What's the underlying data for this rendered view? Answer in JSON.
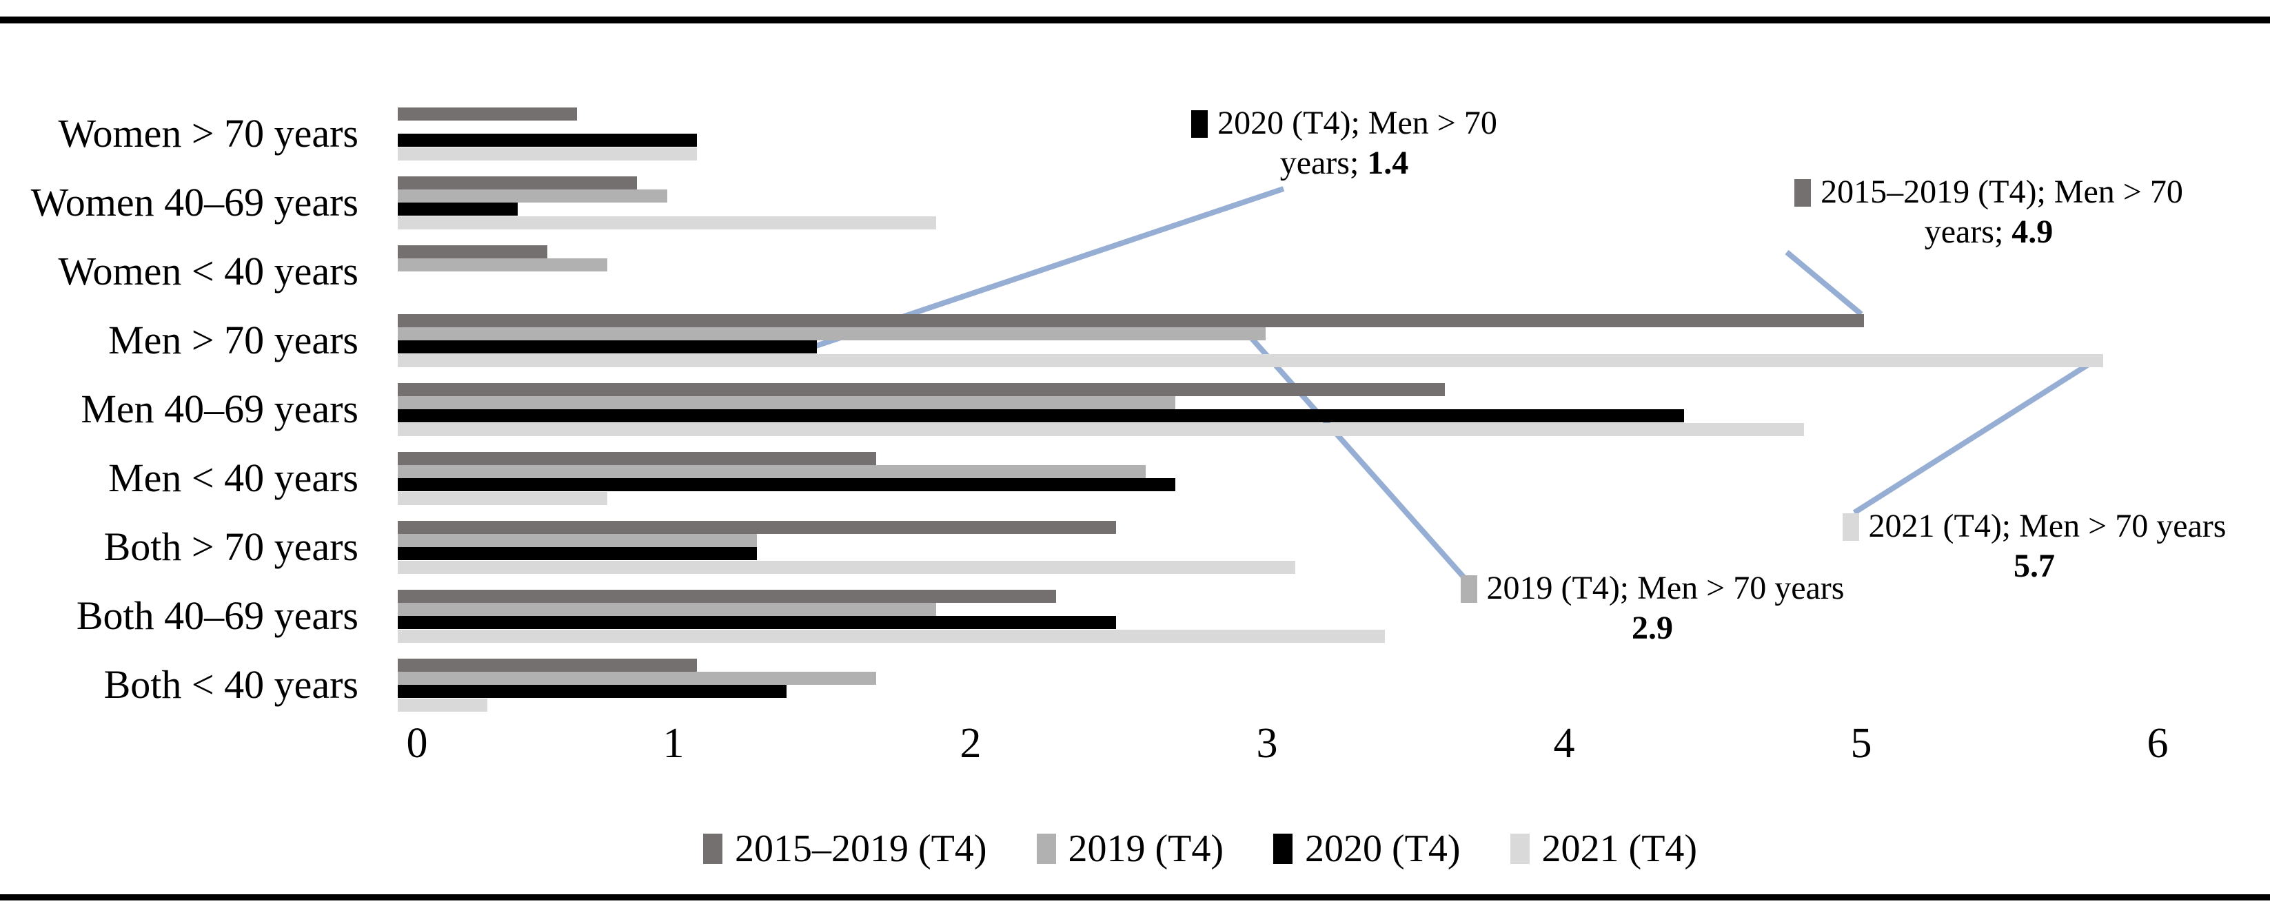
{
  "figure_border_color": "#000000",
  "leader_line_color": "#96aed3",
  "chart_data": {
    "type": "bar",
    "orientation": "horizontal",
    "title": "",
    "xlabel": "",
    "ylabel": "",
    "xlim": [
      0,
      6
    ],
    "tick_labels": [
      "0",
      "1",
      "2",
      "3",
      "4",
      "5",
      "6"
    ],
    "grid": false,
    "legend_position": "bottom-center",
    "categories": [
      "Women > 70 years",
      "Women 40–69 years",
      "Women < 40 years",
      "Men > 70 years",
      "Men 40–69 years",
      "Men < 40 years",
      "Both > 70 years",
      "Both 40–69 years",
      "Both < 40 years"
    ],
    "series": [
      {
        "name": "2015–2019 (T4)",
        "color": "#757070",
        "values": [
          0.6,
          0.8,
          0.5,
          4.9,
          3.5,
          1.6,
          2.4,
          2.2,
          1.0
        ]
      },
      {
        "name": "2019 (T4)",
        "color": "#b1b1b1",
        "values": [
          null,
          0.9,
          0.7,
          2.9,
          2.6,
          2.5,
          1.2,
          1.8,
          1.6
        ]
      },
      {
        "name": "2020 (T4)",
        "color": "#000000",
        "values": [
          1.0,
          0.4,
          null,
          1.4,
          4.3,
          2.6,
          1.2,
          2.4,
          1.3
        ]
      },
      {
        "name": "2021 (T4)",
        "color": "#d9d9d9",
        "values": [
          1.0,
          1.8,
          null,
          5.7,
          4.7,
          0.7,
          3.0,
          3.3,
          0.3
        ]
      }
    ],
    "annotations": [
      {
        "series": "2020 (T4)",
        "line1": "2020 (T4); Men > 70",
        "line2_prefix": "years; ",
        "value": "1.4"
      },
      {
        "series": "2015–2019 (T4)",
        "line1": "2015–2019 (T4); Men > 70",
        "line2_prefix": "years; ",
        "value": "4.9"
      },
      {
        "series": "2021 (T4)",
        "line1": "2021 (T4); Men > 70 years",
        "line2_prefix": "",
        "value": "5.7"
      },
      {
        "series": "2019 (T4)",
        "line1": "2019 (T4); Men > 70 years",
        "line2_prefix": "",
        "value": "2.9"
      }
    ]
  }
}
